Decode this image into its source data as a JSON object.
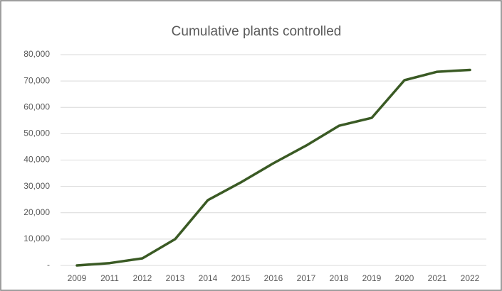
{
  "chart_data": {
    "type": "line",
    "title": "Cumulative plants controlled",
    "categories": [
      "2009",
      "2011",
      "2012",
      "2013",
      "2014",
      "2015",
      "2016",
      "2017",
      "2018",
      "2019",
      "2020",
      "2021",
      "2022"
    ],
    "values": [
      0,
      900,
      2700,
      10000,
      24800,
      31500,
      38800,
      45500,
      53000,
      56000,
      70300,
      73500,
      74200
    ],
    "color": "#3a5a24",
    "ylim": [
      0,
      80000
    ],
    "yticks": [
      {
        "value": 0,
        "label": "-"
      },
      {
        "value": 10000,
        "label": "10,000"
      },
      {
        "value": 20000,
        "label": "20,000"
      },
      {
        "value": 30000,
        "label": "30,000"
      },
      {
        "value": 40000,
        "label": "40,000"
      },
      {
        "value": 50000,
        "label": "50,000"
      },
      {
        "value": 60000,
        "label": "60,000"
      },
      {
        "value": 70000,
        "label": "70,000"
      },
      {
        "value": 80000,
        "label": "80,000"
      }
    ],
    "grid": true
  }
}
